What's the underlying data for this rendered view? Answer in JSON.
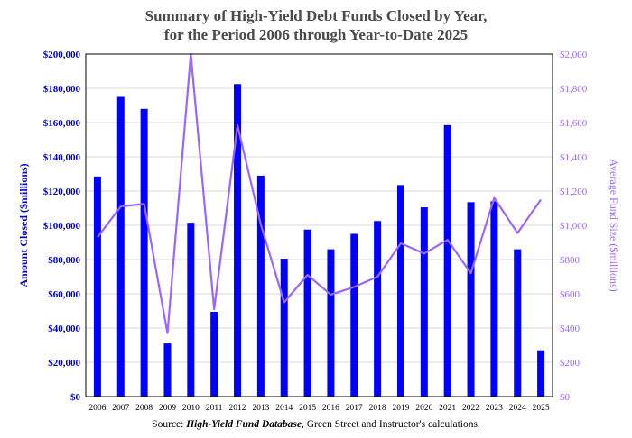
{
  "title_line1": "Summary of  High-Yield Debt Funds Closed by Year,",
  "title_line2": "for the Period 2006 through Year-to-Date 2025",
  "source": {
    "prefix": "Source: ",
    "italic": "High-Yield Fund Database,",
    "suffix": " Green Street and Instructor's calculations."
  },
  "colors": {
    "bars": "#0000ff",
    "line": "#9966ff",
    "left_axis_text": "#0000cc",
    "right_axis_text": "#9966ff",
    "title": "#4a4a4a"
  },
  "chart_data": {
    "type": "bar",
    "categories": [
      "2006",
      "2007",
      "2008",
      "2009",
      "2010",
      "2011",
      "2012",
      "2013",
      "2014",
      "2015",
      "2016",
      "2017",
      "2018",
      "2019",
      "2020",
      "2021",
      "2022",
      "2023",
      "2024",
      "2025"
    ],
    "series": [
      {
        "axis": "left",
        "type": "bar",
        "values": [
          128500,
          175000,
          168000,
          31000,
          101500,
          49500,
          182500,
          129000,
          80500,
          97500,
          86000,
          95000,
          102500,
          123500,
          110500,
          158500,
          113500,
          114000,
          86000,
          27000
        ]
      },
      {
        "axis": "right",
        "type": "line",
        "values": [
          930,
          1110,
          1125,
          370,
          2000,
          510,
          1585,
          1005,
          550,
          710,
          595,
          640,
          700,
          895,
          835,
          915,
          720,
          1160,
          955,
          1150
        ]
      }
    ],
    "ylabel_left": "Amount Closed ($millions)",
    "ylabel_right": "Average Fund Size ($millions)",
    "ylim_left": [
      0,
      200000
    ],
    "ylim_right": [
      0,
      2000
    ],
    "yticks_left": [
      "$0",
      "$20,000",
      "$40,000",
      "$60,000",
      "$80,000",
      "$100,000",
      "$120,000",
      "$140,000",
      "$160,000",
      "$180,000",
      "$200,000"
    ],
    "yticks_right": [
      "$0",
      "$200",
      "$400",
      "$600",
      "$800",
      "$1,000",
      "$1,200",
      "$1,400",
      "$1,600",
      "$1,800",
      "$2,000"
    ],
    "grid": true
  }
}
